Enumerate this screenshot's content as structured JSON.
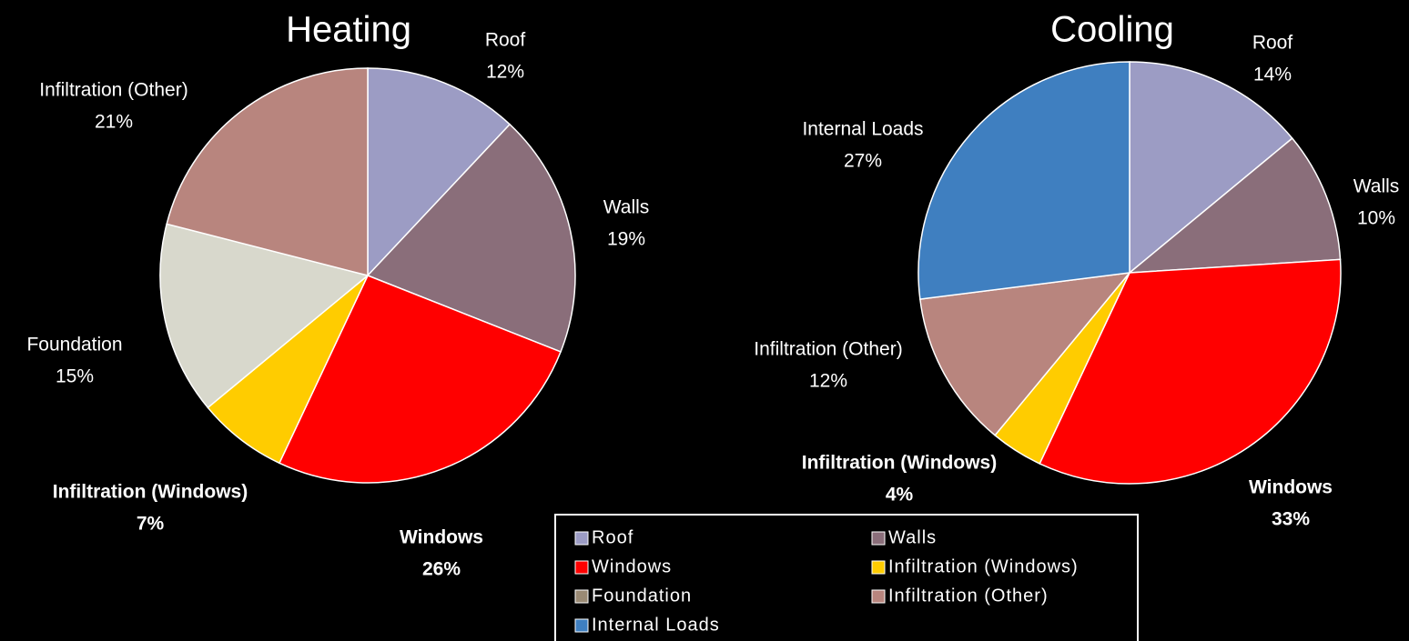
{
  "chart_data": [
    {
      "type": "pie",
      "title": "Heating",
      "categories": [
        "Roof",
        "Walls",
        "Windows",
        "Infiltration (Windows)",
        "Foundation",
        "Infiltration (Other)"
      ],
      "values": [
        12,
        19,
        26,
        7,
        15,
        21
      ],
      "value_labels": [
        "12%",
        "19%",
        "26%",
        "7%",
        "15%",
        "21%"
      ],
      "colors": [
        "#9c9cc4",
        "#8a6e7a",
        "#ff0000",
        "#ffcc00",
        "#d8d8cc",
        "#b8857e"
      ]
    },
    {
      "type": "pie",
      "title": "Cooling",
      "categories": [
        "Roof",
        "Walls",
        "Windows",
        "Infiltration (Windows)",
        "Infiltration (Other)",
        "Internal Loads"
      ],
      "values": [
        14,
        10,
        33,
        4,
        12,
        27
      ],
      "value_labels": [
        "14%",
        "10%",
        "33%",
        "4%",
        "12%",
        "27%"
      ],
      "colors": [
        "#9c9cc4",
        "#8a6e7a",
        "#ff0000",
        "#ffcc00",
        "#b8857e",
        "#3f7fc0"
      ]
    }
  ],
  "legend": {
    "items": [
      {
        "name": "Roof",
        "color": "#9c9cc4"
      },
      {
        "name": "Walls",
        "color": "#8a6e7a"
      },
      {
        "name": "Windows",
        "color": "#ff0000"
      },
      {
        "name": "Infiltration (Windows)",
        "color": "#ffcc00"
      },
      {
        "name": "Foundation",
        "color": "#9a8a74"
      },
      {
        "name": "Infiltration (Other)",
        "color": "#b8857e"
      },
      {
        "name": "Internal Loads",
        "color": "#3f7fc0"
      }
    ]
  }
}
